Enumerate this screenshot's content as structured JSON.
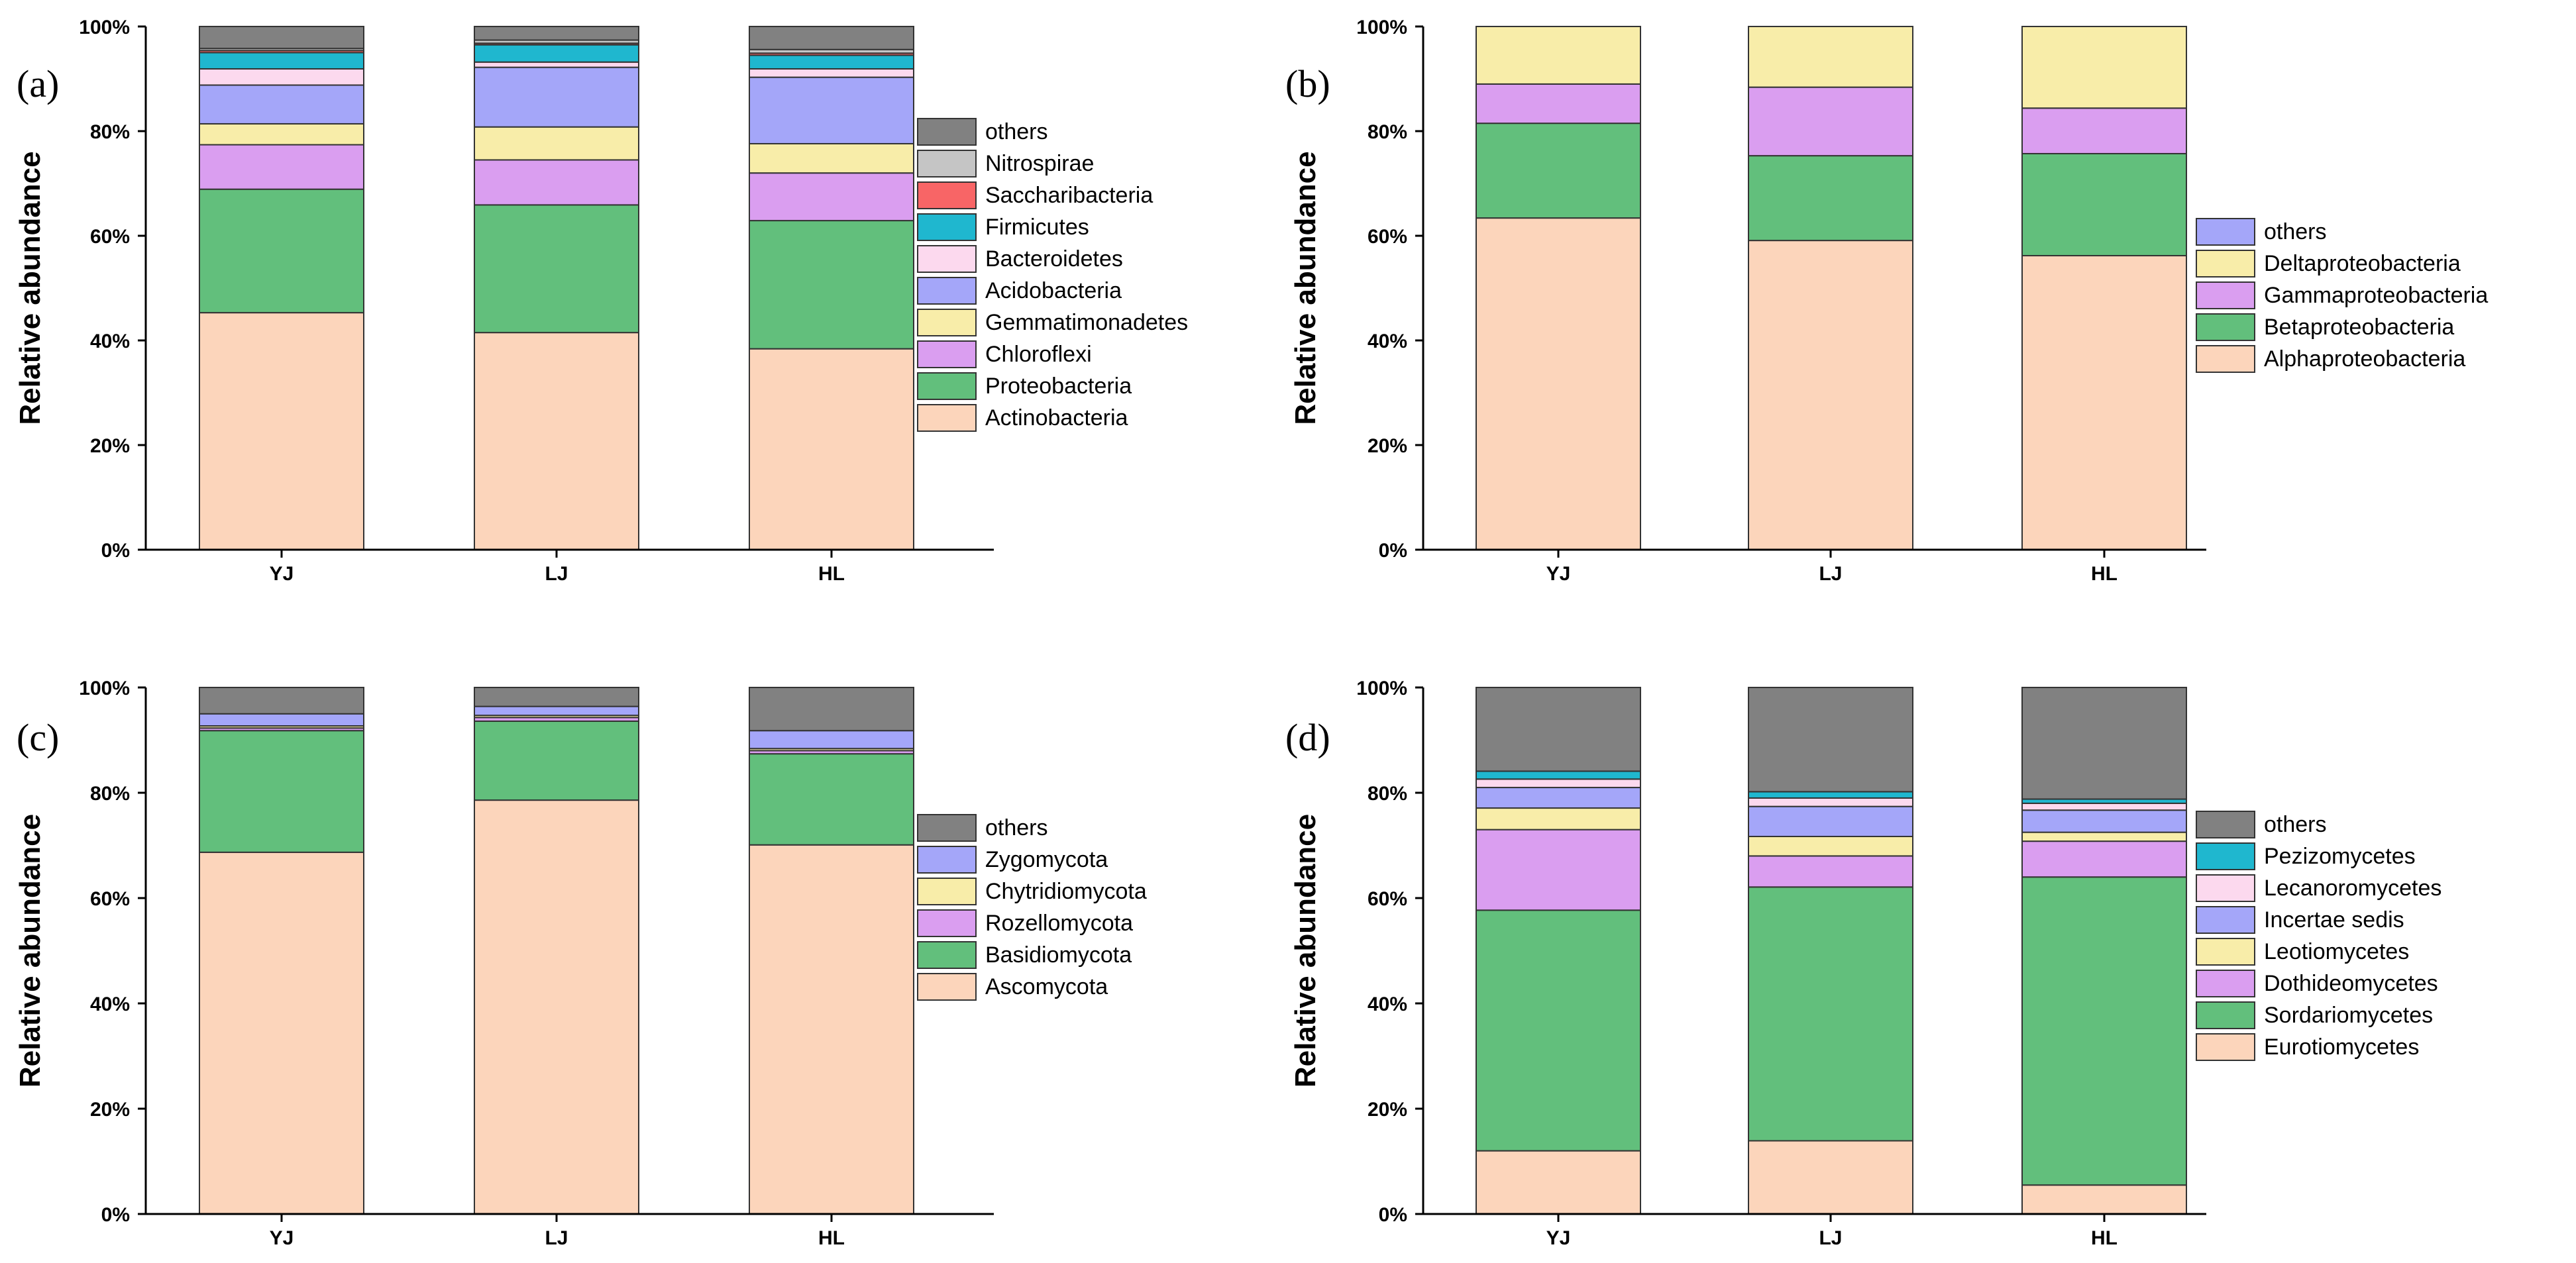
{
  "chart_data": [
    {
      "panel": "(a)",
      "type": "bar",
      "stacked": true,
      "categories": [
        "YJ",
        "LJ",
        "HL"
      ],
      "ylabel": "Relative abundance",
      "ylim": [
        0,
        100
      ],
      "yticks": [
        "0%",
        "20%",
        "40%",
        "60%",
        "80%",
        "100%"
      ],
      "legend": "right",
      "series": [
        {
          "name": "Actinobacteria",
          "color": "#fcd5bb",
          "values": [
            45.3,
            41.5,
            38.4
          ]
        },
        {
          "name": "Proteobacteria",
          "color": "#62bf7c",
          "values": [
            23.6,
            24.4,
            24.5
          ]
        },
        {
          "name": "Chloroflexi",
          "color": "#da9ef0",
          "values": [
            8.5,
            8.6,
            9.1
          ]
        },
        {
          "name": "Gemmatimonadetes",
          "color": "#f8eda9",
          "values": [
            4.0,
            6.3,
            5.6
          ]
        },
        {
          "name": "Acidobacteria",
          "color": "#a4a6f9",
          "values": [
            7.4,
            11.4,
            12.7
          ]
        },
        {
          "name": "Bacteroidetes",
          "color": "#fcd9ee",
          "values": [
            3.1,
            1.0,
            1.6
          ]
        },
        {
          "name": "Firmicutes",
          "color": "#1fb7cf",
          "values": [
            3.1,
            3.3,
            2.6
          ]
        },
        {
          "name": "Saccharibacteria",
          "color": "#f86566",
          "values": [
            0.4,
            0.3,
            0.4
          ]
        },
        {
          "name": "Nitrospirae",
          "color": "#c5c5c5",
          "values": [
            0.4,
            0.6,
            0.7
          ]
        },
        {
          "name": "others",
          "color": "#818181",
          "values": [
            4.2,
            2.6,
            4.4
          ]
        }
      ]
    },
    {
      "panel": "(b)",
      "type": "bar",
      "stacked": true,
      "categories": [
        "YJ",
        "LJ",
        "HL"
      ],
      "ylabel": "Relative abundance",
      "ylim": [
        0,
        100
      ],
      "yticks": [
        "0%",
        "20%",
        "40%",
        "60%",
        "80%",
        "100%"
      ],
      "legend": "right",
      "series": [
        {
          "name": "Alphaproteobacteria",
          "color": "#fcd5bb",
          "values": [
            63.4,
            59.1,
            56.2
          ]
        },
        {
          "name": "Betaproteobacteria",
          "color": "#62bf7c",
          "values": [
            18.1,
            16.2,
            19.5
          ]
        },
        {
          "name": "Gammaproteobacteria",
          "color": "#da9ef0",
          "values": [
            7.5,
            13.1,
            8.7
          ]
        },
        {
          "name": "Deltaproteobacteria",
          "color": "#f8eda9",
          "values": [
            11.0,
            11.6,
            15.6
          ]
        },
        {
          "name": "others",
          "color": "#a4a6f9",
          "values": [
            0,
            0,
            0
          ]
        }
      ]
    },
    {
      "panel": "(c)",
      "type": "bar",
      "stacked": true,
      "categories": [
        "YJ",
        "LJ",
        "HL"
      ],
      "ylabel": "Relative abundance",
      "ylim": [
        0,
        100
      ],
      "yticks": [
        "0%",
        "20%",
        "40%",
        "60%",
        "80%",
        "100%"
      ],
      "legend": "right",
      "series": [
        {
          "name": "Ascomycota",
          "color": "#fcd5bb",
          "values": [
            68.7,
            78.6,
            70.1
          ]
        },
        {
          "name": "Basidiomycota",
          "color": "#62bf7c",
          "values": [
            23.1,
            15.0,
            17.3
          ]
        },
        {
          "name": "Rozellomycota",
          "color": "#da9ef0",
          "values": [
            0.5,
            0.7,
            0.6
          ]
        },
        {
          "name": "Chytridiomycota",
          "color": "#f8eda9",
          "values": [
            0.4,
            0.4,
            0.4
          ]
        },
        {
          "name": "Zygomycota",
          "color": "#a4a6f9",
          "values": [
            2.3,
            1.7,
            3.4
          ]
        },
        {
          "name": "others",
          "color": "#818181",
          "values": [
            5.0,
            3.6,
            8.2
          ]
        }
      ]
    },
    {
      "panel": "(d)",
      "type": "bar",
      "stacked": true,
      "categories": [
        "YJ",
        "LJ",
        "HL"
      ],
      "ylabel": "Relative abundance",
      "ylim": [
        0,
        100
      ],
      "yticks": [
        "0%",
        "20%",
        "40%",
        "60%",
        "80%",
        "100%"
      ],
      "legend": "right",
      "series": [
        {
          "name": "Eurotiomycetes",
          "color": "#fcd5bb",
          "values": [
            12.0,
            13.9,
            5.5
          ]
        },
        {
          "name": "Sordariomycetes",
          "color": "#62bf7c",
          "values": [
            45.7,
            48.2,
            58.5
          ]
        },
        {
          "name": "Dothideomycetes",
          "color": "#da9ef0",
          "values": [
            15.3,
            5.9,
            6.8
          ]
        },
        {
          "name": "Leotiomycetes",
          "color": "#f8eda9",
          "values": [
            4.1,
            3.7,
            1.7
          ]
        },
        {
          "name": "Incertae sedis",
          "color": "#a4a6f9",
          "values": [
            3.9,
            5.7,
            4.2
          ]
        },
        {
          "name": "Lecanoromycetes",
          "color": "#fcd9ee",
          "values": [
            1.6,
            1.6,
            1.3
          ]
        },
        {
          "name": "Pezizomycetes",
          "color": "#1fb7cf",
          "values": [
            1.5,
            1.2,
            0.8
          ]
        },
        {
          "name": "others",
          "color": "#818181",
          "values": [
            15.9,
            19.8,
            21.2
          ]
        }
      ]
    }
  ]
}
